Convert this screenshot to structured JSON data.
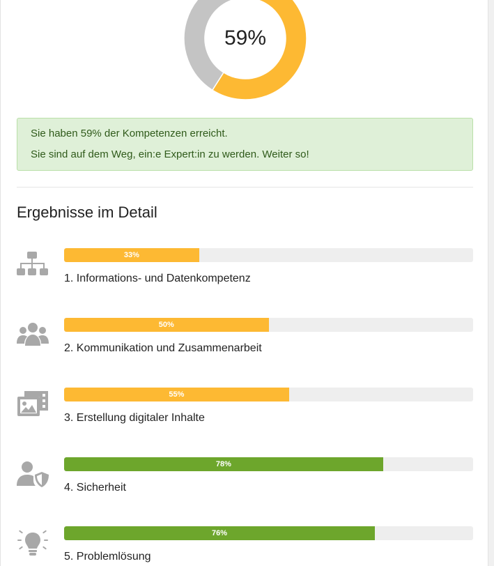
{
  "summary": {
    "percent_value": 59,
    "percent_label": "59%",
    "achieved_color": "#fdb933",
    "remaining_color": "#c4c4c4",
    "message_line1": "Sie haben 59% der Kompetenzen erreicht.",
    "message_line2": "Sie sind auf dem Weg, ein:e Expert:in zu werden. Weiter so!"
  },
  "details": {
    "title": "Ergebnisse im Detail",
    "items": [
      {
        "icon": "sitemap-icon",
        "value": 33,
        "value_label": "33%",
        "color": "#fdb933",
        "label": "1. Informations- und Datenkompetenz"
      },
      {
        "icon": "users-icon",
        "value": 50,
        "value_label": "50%",
        "color": "#fdb933",
        "label": "2. Kommunikation und Zusammenarbeit"
      },
      {
        "icon": "photo-film-icon",
        "value": 55,
        "value_label": "55%",
        "color": "#fdb933",
        "label": "3. Erstellung digitaler Inhalte"
      },
      {
        "icon": "user-shield-icon",
        "value": 78,
        "value_label": "78%",
        "color": "#6da62c",
        "label": "4. Sicherheit"
      },
      {
        "icon": "lightbulb-icon",
        "value": 76,
        "value_label": "76%",
        "color": "#6da62c",
        "label": "5. Problemlösung"
      }
    ]
  }
}
